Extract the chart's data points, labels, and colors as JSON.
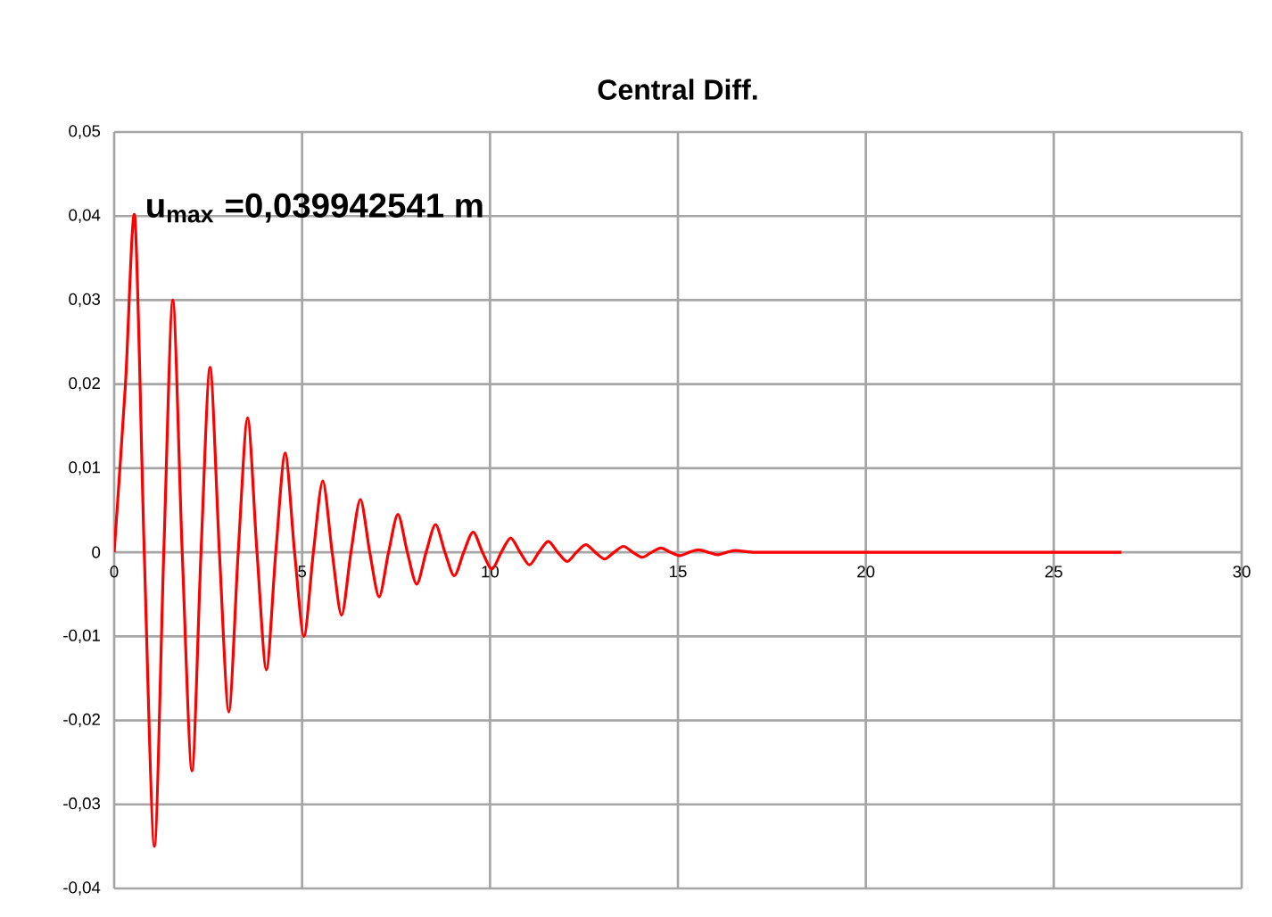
{
  "chart_data": {
    "type": "line",
    "title": "Central Diff.",
    "x": [
      0,
      0.3,
      0.55,
      0.8,
      1.07,
      1.32,
      1.56,
      1.81,
      2.07,
      2.31,
      2.55,
      2.8,
      3.05,
      3.3,
      3.55,
      3.8,
      4.05,
      4.3,
      4.55,
      4.8,
      5.05,
      5.3,
      5.55,
      5.8,
      6.05,
      6.3,
      6.55,
      6.8,
      7.05,
      7.3,
      7.55,
      7.8,
      8.05,
      8.3,
      8.55,
      8.8,
      9.05,
      9.3,
      9.55,
      9.8,
      10.05,
      10.3,
      10.55,
      10.8,
      11.05,
      11.3,
      11.55,
      11.8,
      12.05,
      12.3,
      12.55,
      12.8,
      13.05,
      13.3,
      13.55,
      13.8,
      14.05,
      14.3,
      14.55,
      14.8,
      15.05,
      15.3,
      15.55,
      15.8,
      16.05,
      16.3,
      16.55,
      17,
      18,
      20,
      22,
      24,
      26.8
    ],
    "series": [
      {
        "color": "#ff0000",
        "values": [
          0,
          0.02,
          0.0399,
          0,
          -0.035,
          0,
          0.03,
          0,
          -0.026,
          0,
          0.022,
          0,
          -0.019,
          0,
          0.016,
          0,
          -0.014,
          0,
          0.0118,
          0,
          -0.01,
          0,
          0.0085,
          0,
          -0.0075,
          0,
          0.0063,
          0,
          -0.0053,
          0,
          0.0045,
          0,
          -0.0038,
          0,
          0.0033,
          0,
          -0.0028,
          0,
          0.0024,
          0,
          -0.002,
          0,
          0.0017,
          0,
          -0.0015,
          0,
          0.0013,
          0,
          -0.0011,
          0,
          0.0009,
          0,
          -0.0008,
          0,
          0.0007,
          0,
          -0.0006,
          0,
          0.0005,
          0,
          -0.0004,
          0,
          0.0003,
          0,
          -0.0003,
          0,
          0.0002,
          0,
          0,
          0,
          0,
          0,
          0
        ]
      }
    ],
    "xlim": [
      0,
      30
    ],
    "xticks": [
      0,
      5,
      10,
      15,
      20,
      25,
      30
    ],
    "ylim": [
      -0.04,
      0.05
    ],
    "yticks": [
      {
        "value": -0.04,
        "label": "-0,04"
      },
      {
        "value": -0.03,
        "label": "-0,03"
      },
      {
        "value": -0.02,
        "label": "-0,02"
      },
      {
        "value": -0.01,
        "label": "-0,01"
      },
      0,
      {
        "value": 0.01,
        "label": "0,01"
      },
      {
        "value": 0.02,
        "label": "0,02"
      },
      {
        "value": 0.03,
        "label": "0,03"
      },
      {
        "value": 0.04,
        "label": "0,04"
      },
      {
        "value": 0.05,
        "label": "0,05"
      }
    ],
    "annotations": [
      "**u$_{max}$ =0,039942541 m**"
    ],
    "grid": true,
    "marker": "none",
    "line_style": "solid"
  }
}
